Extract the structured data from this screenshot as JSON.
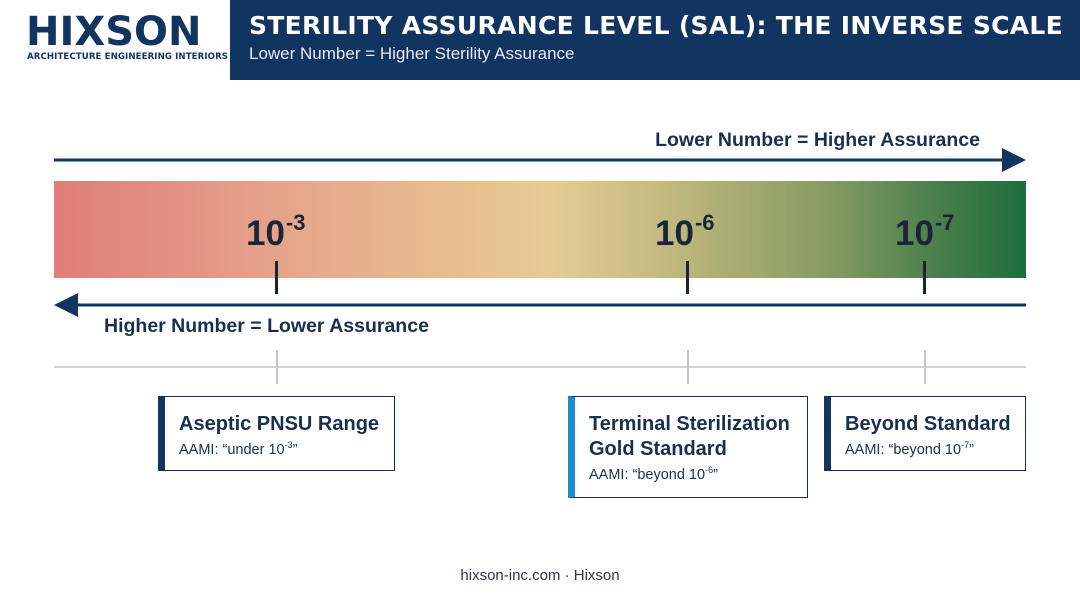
{
  "brand": {
    "name": "HIXSON",
    "tagline": "ARCHITECTURE ENGINEERING INTERIORS"
  },
  "header": {
    "title": "STERILITY ASSURANCE LEVEL (SAL): THE INVERSE SCALE",
    "subtitle": "Lower Number = Higher Sterility Assurance"
  },
  "arrows": {
    "top_label": "Lower Number = Higher Assurance",
    "bottom_label": "Higher Number = Lower Assurance"
  },
  "scale": {
    "markers": [
      {
        "base": "10",
        "exponent": "-3"
      },
      {
        "base": "10",
        "exponent": "-6"
      },
      {
        "base": "10",
        "exponent": "-7"
      }
    ],
    "colors": {
      "low_assurance": "#df7d7a",
      "mid": "#e7cb94",
      "high_assurance": "#1f6e3b"
    }
  },
  "cards": [
    {
      "title": "Aseptic PNSU Range",
      "note_prefix": "AAMI: “under 10",
      "note_exp": "-3",
      "note_suffix": "”"
    },
    {
      "title": "Terminal Sterilization Gold Standard",
      "note_prefix": "AAMI: “beyond 10",
      "note_exp": "-6",
      "note_suffix": "”"
    },
    {
      "title": "Beyond Standard",
      "note_prefix": "AAMI: “beyond 10",
      "note_exp": "-7",
      "note_suffix": "”"
    }
  ],
  "footer": "hixson-inc.com · Hixson",
  "colors": {
    "navy": "#123461",
    "accent_blue": "#1f8ad0"
  }
}
